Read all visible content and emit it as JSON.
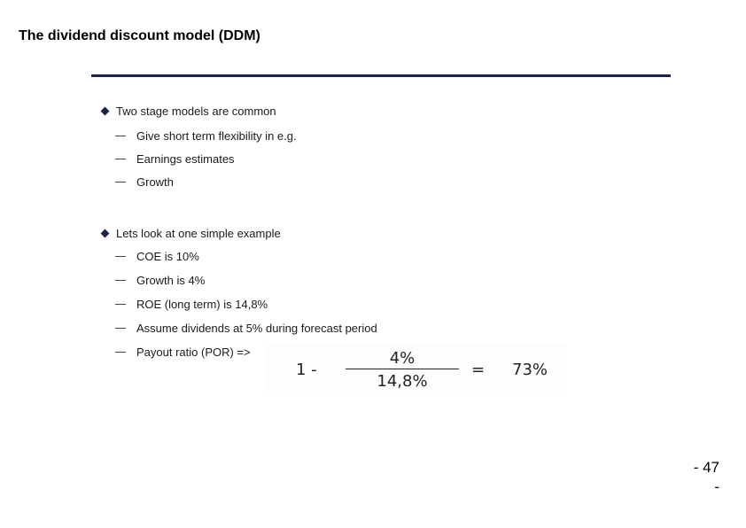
{
  "title": "The dividend discount model (DDM)",
  "colors": {
    "rule": "#1c2448",
    "bullet": "#1c2448"
  },
  "bullet_icon": "diamond-bullet-icon",
  "sections": [
    {
      "text": "Two stage models are common",
      "items": [
        "Give short term flexibility in e.g.",
        "Earnings estimates",
        "Growth"
      ]
    },
    {
      "text": "Lets look at one simple example",
      "items": [
        "COE is 10%",
        "Growth is 4%",
        "ROE (long term) is 14,8%",
        "Assume dividends at 5% during forecast period",
        "Payout ratio (POR) =>"
      ]
    }
  ],
  "formula": {
    "prefix": "1 -",
    "numerator": "4%",
    "denominator": "14,8%",
    "equals": "=",
    "result": "73%"
  },
  "page_number": {
    "line1": "- 47",
    "line2": "-"
  }
}
